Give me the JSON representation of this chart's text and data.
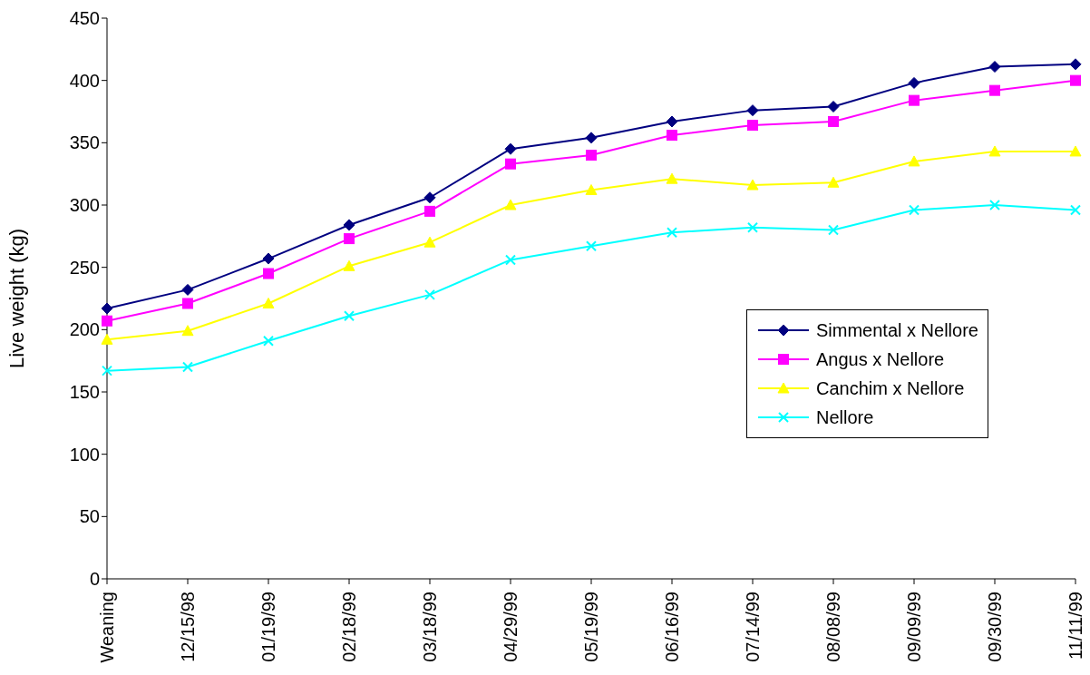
{
  "chart_data": {
    "type": "line",
    "ylabel": "Live weight (kg)",
    "categories": [
      "Weaning",
      "12/15/98",
      "01/19/99",
      "02/18/99",
      "03/18/99",
      "04/29/99",
      "05/19/99",
      "06/16/99",
      "07/14/99",
      "08/08/99",
      "09/09/99",
      "09/30/99",
      "11/11/99"
    ],
    "series": [
      {
        "name": "Simmental x Nellore",
        "color": "#000080",
        "marker": "diamond",
        "values": [
          217,
          232,
          257,
          284,
          306,
          345,
          354,
          367,
          376,
          379,
          398,
          411,
          413
        ]
      },
      {
        "name": "Angus x Nellore",
        "color": "#ff00ff",
        "marker": "square",
        "values": [
          207,
          221,
          245,
          273,
          295,
          333,
          340,
          356,
          364,
          367,
          384,
          392,
          400
        ]
      },
      {
        "name": "Canchim x Nellore",
        "color": "#ffff00",
        "marker": "triangle",
        "values": [
          192,
          199,
          221,
          251,
          270,
          300,
          312,
          321,
          316,
          318,
          335,
          343,
          343
        ]
      },
      {
        "name": "Nellore",
        "color": "#00ffff",
        "marker": "cross",
        "values": [
          167,
          170,
          191,
          211,
          228,
          256,
          267,
          278,
          282,
          280,
          296,
          300,
          296
        ]
      }
    ],
    "ylim": [
      0,
      450
    ],
    "yticks": [
      0,
      50,
      100,
      150,
      200,
      250,
      300,
      350,
      400,
      450
    ],
    "grid": false,
    "legend": "right"
  }
}
